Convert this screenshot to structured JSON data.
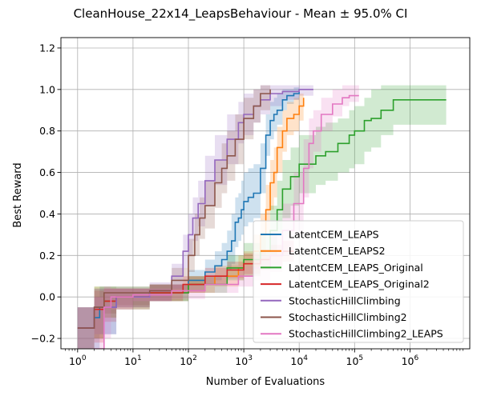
{
  "chart_data": {
    "type": "line",
    "title": "CleanHouse_22x14_LeapsBehaviour - Mean ± 95.0% CI",
    "xlabel": "Number of Evaluations",
    "ylabel": "Best Reward",
    "xscale": "log",
    "xlim": [
      0.5,
      12000000
    ],
    "ylim": [
      -0.25,
      1.25
    ],
    "grid": true,
    "legend_position": "lower-right",
    "x_ticks": [
      {
        "value": 1,
        "base": "10",
        "exp": "0"
      },
      {
        "value": 10,
        "base": "10",
        "exp": "1"
      },
      {
        "value": 100,
        "base": "10",
        "exp": "2"
      },
      {
        "value": 1000,
        "base": "10",
        "exp": "3"
      },
      {
        "value": 10000,
        "base": "10",
        "exp": "4"
      },
      {
        "value": 100000,
        "base": "10",
        "exp": "5"
      },
      {
        "value": 1000000,
        "base": "10",
        "exp": "6"
      }
    ],
    "y_ticks": [
      {
        "value": -0.2,
        "label": "−0.2"
      },
      {
        "value": 0.0,
        "label": "0.0"
      },
      {
        "value": 0.2,
        "label": "0.2"
      },
      {
        "value": 0.4,
        "label": "0.4"
      },
      {
        "value": 0.6,
        "label": "0.6"
      },
      {
        "value": 0.8,
        "label": "0.8"
      },
      {
        "value": 1.0,
        "label": "1.0"
      },
      {
        "value": 1.2,
        "label": "1.2"
      }
    ],
    "series": [
      {
        "name": "LatentCEM_LEAPS",
        "color": "#1f77b4",
        "x": [
          1,
          2,
          2.5,
          5,
          20,
          100,
          200,
          300,
          400,
          500,
          600,
          700,
          800,
          900,
          1000,
          1200,
          1500,
          2000,
          2500,
          3000,
          3500,
          4000,
          5000,
          6000,
          8000,
          10000
        ],
        "y": [
          -0.15,
          -0.1,
          -0.05,
          0.0,
          0.02,
          0.08,
          0.12,
          0.15,
          0.18,
          0.22,
          0.27,
          0.36,
          0.38,
          0.42,
          0.46,
          0.48,
          0.5,
          0.62,
          0.78,
          0.85,
          0.88,
          0.9,
          0.95,
          0.97,
          0.98,
          1.0
        ],
        "lower": [
          -0.25,
          -0.25,
          -0.18,
          -0.05,
          -0.02,
          0.03,
          0.06,
          0.08,
          0.1,
          0.13,
          0.16,
          0.24,
          0.27,
          0.3,
          0.34,
          0.36,
          0.38,
          0.5,
          0.68,
          0.76,
          0.8,
          0.83,
          0.9,
          0.93,
          0.95,
          0.97
        ],
        "upper": [
          -0.05,
          0.0,
          0.05,
          0.04,
          0.06,
          0.13,
          0.18,
          0.22,
          0.26,
          0.32,
          0.4,
          0.48,
          0.5,
          0.56,
          0.6,
          0.62,
          0.64,
          0.74,
          0.88,
          0.94,
          0.96,
          0.98,
          1.0,
          1.0,
          1.01,
          1.02
        ]
      },
      {
        "name": "LatentCEM_LEAPS2",
        "color": "#ff7f0e",
        "x": [
          2,
          3,
          5,
          20,
          100,
          300,
          800,
          1000,
          1500,
          2000,
          2500,
          3000,
          3500,
          4000,
          5000,
          6000,
          8000,
          10000,
          12000
        ],
        "y": [
          -0.05,
          -0.02,
          0.0,
          0.02,
          0.06,
          0.1,
          0.14,
          0.16,
          0.22,
          0.3,
          0.42,
          0.55,
          0.6,
          0.72,
          0.8,
          0.86,
          0.88,
          0.92,
          0.96
        ],
        "lower": [
          -0.2,
          -0.1,
          -0.05,
          -0.02,
          0.02,
          0.05,
          0.08,
          0.1,
          0.14,
          0.2,
          0.3,
          0.42,
          0.48,
          0.6,
          0.7,
          0.78,
          0.8,
          0.85,
          0.9
        ],
        "upper": [
          0.05,
          0.05,
          0.04,
          0.06,
          0.1,
          0.15,
          0.2,
          0.22,
          0.3,
          0.4,
          0.54,
          0.66,
          0.72,
          0.82,
          0.9,
          0.94,
          0.96,
          0.98,
          1.0
        ]
      },
      {
        "name": "LatentCEM_LEAPS_Original",
        "color": "#2ca02c",
        "x": [
          2,
          3,
          5,
          20,
          100,
          500,
          1000,
          2000,
          3000,
          4000,
          5000,
          7000,
          10000,
          20000,
          30000,
          50000,
          80000,
          100000,
          150000,
          200000,
          300000,
          500000,
          1000000,
          2000000,
          4500000
        ],
        "y": [
          -0.05,
          -0.02,
          0.0,
          0.02,
          0.06,
          0.14,
          0.18,
          0.22,
          0.32,
          0.42,
          0.52,
          0.58,
          0.64,
          0.68,
          0.7,
          0.74,
          0.78,
          0.8,
          0.85,
          0.86,
          0.9,
          0.95,
          0.95,
          0.95,
          0.95
        ],
        "lower": [
          -0.2,
          -0.1,
          -0.06,
          -0.02,
          0.02,
          0.08,
          0.1,
          0.14,
          0.2,
          0.3,
          0.38,
          0.44,
          0.5,
          0.54,
          0.56,
          0.6,
          0.62,
          0.64,
          0.7,
          0.72,
          0.78,
          0.83,
          0.83,
          0.83,
          0.83
        ],
        "upper": [
          0.05,
          0.05,
          0.05,
          0.06,
          0.1,
          0.2,
          0.26,
          0.3,
          0.44,
          0.56,
          0.66,
          0.72,
          0.78,
          0.82,
          0.84,
          0.86,
          0.9,
          0.92,
          0.96,
          1.0,
          1.02,
          1.02,
          1.02,
          1.02,
          1.02
        ]
      },
      {
        "name": "LatentCEM_LEAPS_Original2",
        "color": "#d62728",
        "x": [
          1,
          2,
          3,
          5,
          20,
          80,
          200,
          500,
          1000,
          2000,
          3000,
          5000,
          8000
        ],
        "y": [
          -0.15,
          -0.06,
          -0.02,
          0.0,
          0.02,
          0.06,
          0.1,
          0.13,
          0.16,
          0.18,
          0.2,
          0.22,
          0.22
        ],
        "lower": [
          -0.25,
          -0.22,
          -0.12,
          -0.06,
          -0.02,
          0.02,
          0.06,
          0.09,
          0.11,
          0.13,
          0.15,
          0.17,
          0.17
        ],
        "upper": [
          -0.05,
          0.03,
          0.04,
          0.04,
          0.06,
          0.1,
          0.14,
          0.17,
          0.21,
          0.23,
          0.25,
          0.27,
          0.27
        ]
      },
      {
        "name": "StochasticHillClimbing",
        "color": "#9467bd",
        "x": [
          1,
          2,
          5,
          20,
          50,
          80,
          100,
          120,
          150,
          200,
          300,
          500,
          800,
          1000,
          1500,
          2000,
          3000,
          5000,
          10000,
          18000
        ],
        "y": [
          -0.15,
          -0.05,
          0.0,
          0.03,
          0.1,
          0.22,
          0.3,
          0.38,
          0.45,
          0.56,
          0.66,
          0.76,
          0.84,
          0.88,
          0.92,
          0.95,
          0.98,
          0.99,
          1.0,
          1.0
        ],
        "lower": [
          -0.25,
          -0.18,
          -0.05,
          -0.02,
          0.04,
          0.14,
          0.2,
          0.27,
          0.34,
          0.44,
          0.54,
          0.64,
          0.74,
          0.78,
          0.84,
          0.88,
          0.92,
          0.95,
          0.97,
          0.98
        ],
        "upper": [
          -0.05,
          0.04,
          0.04,
          0.07,
          0.16,
          0.3,
          0.4,
          0.48,
          0.56,
          0.68,
          0.78,
          0.88,
          0.94,
          0.98,
          1.0,
          1.02,
          1.02,
          1.02,
          1.02,
          1.02
        ]
      },
      {
        "name": "StochasticHillClimbing2",
        "color": "#8c564b",
        "x": [
          1,
          2,
          3,
          5,
          20,
          50,
          100,
          130,
          160,
          200,
          300,
          400,
          500,
          700,
          1000,
          1500,
          2000,
          3000
        ],
        "y": [
          -0.15,
          -0.05,
          0.02,
          0.02,
          0.03,
          0.08,
          0.2,
          0.3,
          0.38,
          0.44,
          0.55,
          0.62,
          0.68,
          0.76,
          0.86,
          0.92,
          0.98,
          1.0
        ],
        "lower": [
          -0.25,
          -0.2,
          -0.08,
          -0.04,
          -0.02,
          0.03,
          0.12,
          0.2,
          0.28,
          0.33,
          0.43,
          0.5,
          0.56,
          0.64,
          0.76,
          0.84,
          0.9,
          0.94
        ],
        "upper": [
          -0.05,
          0.04,
          0.04,
          0.05,
          0.06,
          0.14,
          0.28,
          0.4,
          0.48,
          0.56,
          0.66,
          0.74,
          0.8,
          0.88,
          0.96,
          1.0,
          1.02,
          1.02
        ]
      },
      {
        "name": "StochasticHillClimbing2_LEAPS",
        "color": "#e377c2",
        "x": [
          2,
          3,
          4,
          10,
          50,
          200,
          800,
          1500,
          3000,
          5000,
          8000,
          12000,
          15000,
          18000,
          25000,
          40000,
          60000,
          80000,
          120000
        ],
        "y": [
          -0.25,
          -0.05,
          0.0,
          0.01,
          0.03,
          0.06,
          0.1,
          0.14,
          0.2,
          0.32,
          0.45,
          0.62,
          0.74,
          0.8,
          0.88,
          0.93,
          0.96,
          0.97,
          0.97
        ],
        "lower": [
          -0.25,
          -0.2,
          -0.06,
          -0.02,
          -0.01,
          0.02,
          0.05,
          0.08,
          0.12,
          0.2,
          0.3,
          0.48,
          0.62,
          0.7,
          0.8,
          0.87,
          0.92,
          0.94,
          0.94
        ],
        "upper": [
          0.0,
          0.05,
          0.04,
          0.04,
          0.06,
          0.1,
          0.15,
          0.2,
          0.3,
          0.45,
          0.6,
          0.76,
          0.86,
          0.9,
          0.96,
          1.0,
          1.02,
          1.02,
          1.02
        ]
      }
    ]
  }
}
